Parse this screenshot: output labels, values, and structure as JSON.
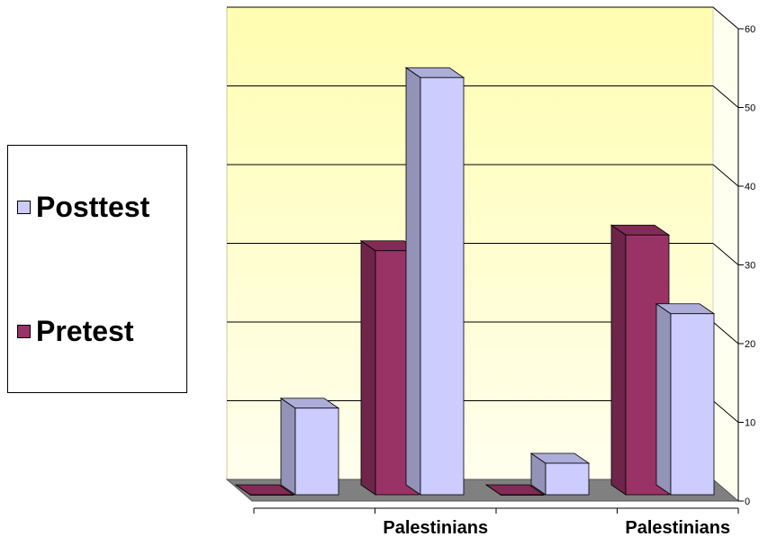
{
  "chart_data": {
    "type": "bar",
    "categories": [
      "",
      "Palestinians",
      "",
      "Palestinians"
    ],
    "series": [
      {
        "name": "Pretest",
        "values": [
          0,
          31,
          0,
          33
        ],
        "color": "#993366"
      },
      {
        "name": "Posttest",
        "values": [
          11,
          53,
          4,
          23
        ],
        "color": "#ccccff"
      }
    ],
    "ylim": [
      0,
      60
    ],
    "yticks": [
      0,
      10,
      20,
      30,
      40,
      50,
      60
    ],
    "grid": true,
    "legend_position": "left",
    "wall_color": "#ffffcc",
    "floor_color": "#808080"
  }
}
